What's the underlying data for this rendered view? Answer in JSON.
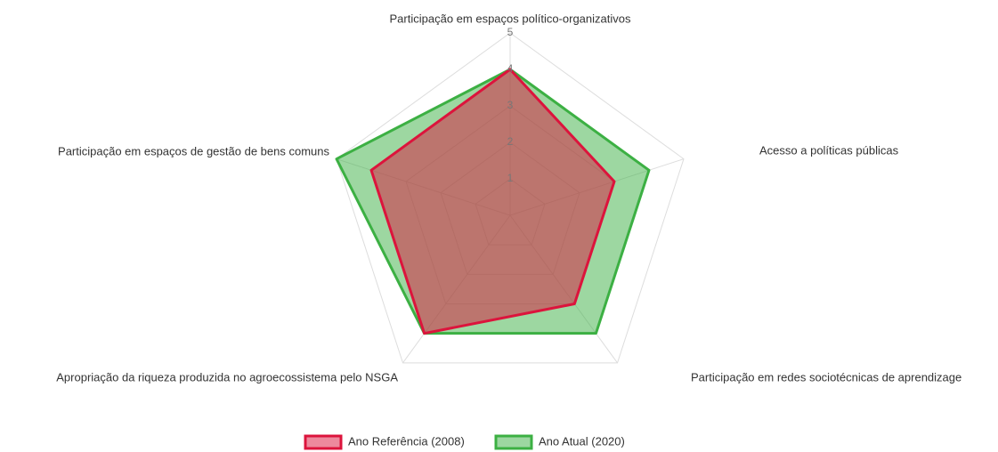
{
  "chart_data": {
    "type": "radar",
    "categories": [
      "Participação em espaços político-organizativos",
      "Acesso a políticas públicas",
      "Participação em redes sociotécnicas de aprendizage",
      "Apropriação da riqueza produzida no agroecossistema pelo NSGA",
      "Participação em espaços de gestão de bens comuns"
    ],
    "series": [
      {
        "name": "Ano Atual (2020)",
        "color": "#3cb043",
        "values": [
          4,
          4,
          4,
          4,
          5
        ]
      },
      {
        "name": "Ano Referência (2008)",
        "color": "#dc143c",
        "values": [
          4,
          3,
          3,
          4,
          4
        ]
      }
    ],
    "ylim": [
      0,
      5
    ],
    "yticks": [
      1,
      2,
      3,
      4,
      5
    ],
    "grid": true,
    "legend": "bottom"
  }
}
